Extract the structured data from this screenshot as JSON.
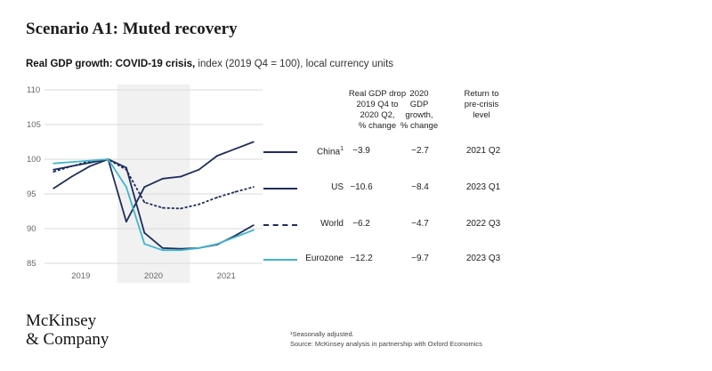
{
  "header": {
    "title": "Scenario A1: Muted recovery",
    "subtitle_bold": "Real GDP growth: COVID-19 crisis,",
    "subtitle_rest": " index (2019 Q4 = 100), local currency units"
  },
  "colors": {
    "navy": "#1f2d5a",
    "teal": "#3fb6cc",
    "grid": "#d9d9d9",
    "band": "#f1f1f1"
  },
  "chart_data": {
    "type": "line",
    "title": "Real GDP growth: COVID-19 crisis, index (2019 Q4 = 100), local currency units",
    "x": [
      "2019 Q1",
      "2019 Q2",
      "2019 Q3",
      "2019 Q4",
      "2020 Q1",
      "2020 Q2",
      "2020 Q3",
      "2020 Q4",
      "2021 Q1",
      "2021 Q2",
      "2021 Q3",
      "2021 Q4"
    ],
    "categories": [
      "2019",
      "2020",
      "2021"
    ],
    "yticks": [
      85,
      90,
      95,
      100,
      105,
      110
    ],
    "ylim": [
      85,
      110
    ],
    "grid": true,
    "series": [
      {
        "name": "China",
        "style": "solid",
        "color": "#1f2d5a",
        "values": [
          95.8,
          97.5,
          99.0,
          100,
          91.0,
          96.0,
          97.2,
          97.5,
          98.5,
          100.5,
          101.5,
          102.5
        ]
      },
      {
        "name": "US",
        "style": "solid",
        "color": "#1f2d5a",
        "values": [
          98.5,
          99.0,
          99.5,
          100,
          98.8,
          89.4,
          87.2,
          87.1,
          87.2,
          87.7,
          89.0,
          90.5
        ]
      },
      {
        "name": "World",
        "style": "dashed",
        "color": "#1f2d5a",
        "values": [
          98.2,
          99.0,
          99.7,
          100,
          98.5,
          93.8,
          93.0,
          92.9,
          93.5,
          94.5,
          95.3,
          96.0
        ]
      },
      {
        "name": "Eurozone",
        "style": "solid",
        "color": "#3fb6cc",
        "values": [
          99.4,
          99.6,
          99.8,
          100,
          96.0,
          87.8,
          86.9,
          86.9,
          87.2,
          87.8,
          88.8,
          89.8
        ]
      }
    ]
  },
  "table": {
    "headers": [
      "Real GDP drop\n2019 Q4 to\n2020 Q2,\n% change",
      "2020\nGDP\ngrowth,\n% change",
      "Return to\npre-crisis\nlevel"
    ],
    "rows": [
      {
        "name": "China",
        "sup": "1",
        "drop": "−3.9",
        "growth": "−2.7",
        "return": "2021 Q2"
      },
      {
        "name": "US",
        "sup": "",
        "drop": "−10.6",
        "growth": "−8.4",
        "return": "2023 Q1"
      },
      {
        "name": "World",
        "sup": "",
        "drop": "−6.2",
        "growth": "−4.7",
        "return": "2022 Q3"
      },
      {
        "name": "Eurozone",
        "sup": "",
        "drop": "−12.2",
        "growth": "−9.7",
        "return": "2023 Q3"
      }
    ]
  },
  "footer": {
    "logo_line1": "McKinsey",
    "logo_line2": "& Company",
    "note1": "¹Seasonally adjusted.",
    "note2": "Source: McKinsey analysis in partnership with Oxford Economics"
  }
}
